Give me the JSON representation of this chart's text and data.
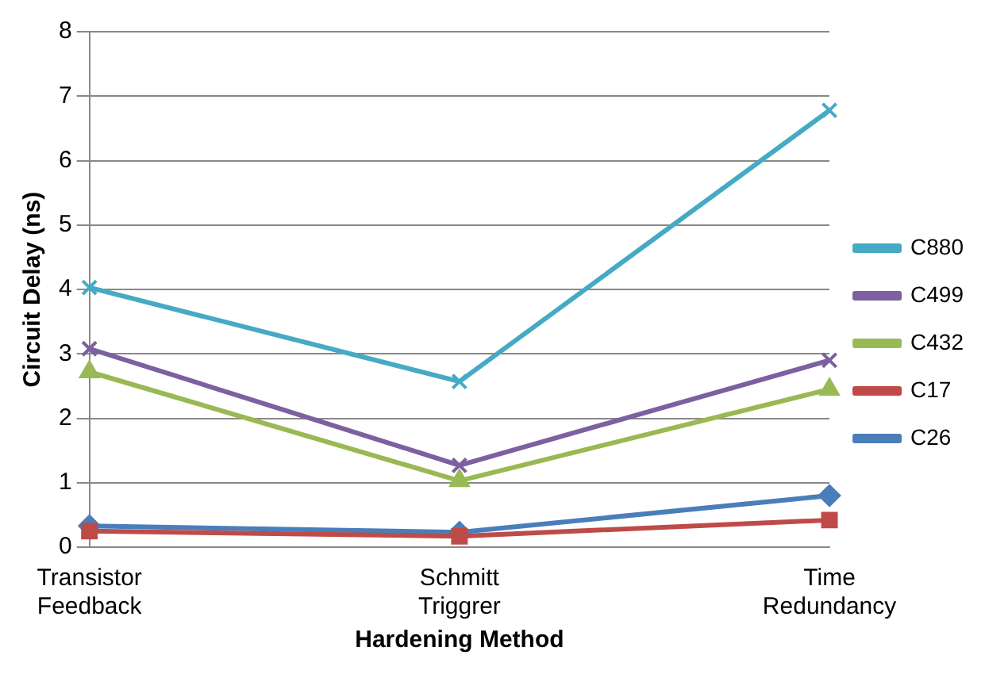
{
  "chart_data": {
    "type": "line",
    "xlabel": "Hardening Method",
    "ylabel": "Circuit Delay (ns)",
    "categories": [
      "Transistor Feedback",
      "Schmitt Triggrer",
      "Time Redundancy"
    ],
    "ylim": [
      0,
      8
    ],
    "yticks": [
      0,
      1,
      2,
      3,
      4,
      5,
      6,
      7,
      8
    ],
    "grid": "y",
    "legend": "right",
    "series": [
      {
        "name": "C26",
        "color": "#4a7ebb",
        "marker": "diamond",
        "values": [
          0.33,
          0.23,
          0.8
        ]
      },
      {
        "name": "C17",
        "color": "#be4b48",
        "marker": "square",
        "values": [
          0.25,
          0.17,
          0.42
        ]
      },
      {
        "name": "C432",
        "color": "#98b954",
        "marker": "triangle",
        "values": [
          2.72,
          1.03,
          2.45
        ]
      },
      {
        "name": "C499",
        "color": "#7d60a0",
        "marker": "cross",
        "values": [
          3.08,
          1.27,
          2.9
        ]
      },
      {
        "name": "C880",
        "color": "#46aac5",
        "marker": "cross",
        "values": [
          4.03,
          2.57,
          6.78
        ]
      }
    ]
  }
}
